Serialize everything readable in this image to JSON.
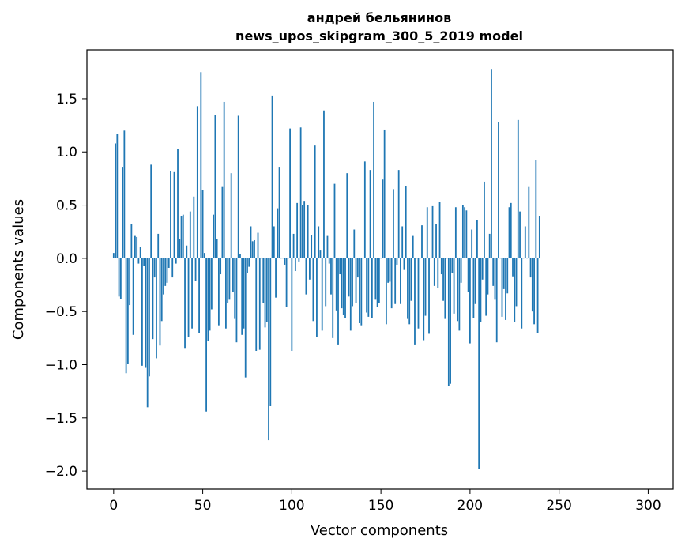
{
  "chart_data": {
    "type": "bar",
    "title": "андрей бельянинов",
    "subtitle": "news_upos_skipgram_300_5_2019 model",
    "xlabel": "Vector components",
    "ylabel": "Components values",
    "xlim": [
      -15,
      314
    ],
    "ylim": [
      -2.17,
      1.96
    ],
    "xticks": [
      0,
      50,
      100,
      150,
      200,
      250,
      300
    ],
    "yticks": [
      -2.0,
      -1.5,
      -1.0,
      -0.5,
      0.0,
      0.5,
      1.0,
      1.5
    ],
    "ytick_labels": [
      "−2.0",
      "−1.5",
      "−1.0",
      "−0.5",
      "0.0",
      "0.5",
      "1.0",
      "1.5"
    ],
    "grid": false,
    "bar_color": "#1f77b4",
    "values": [
      0.05,
      1.08,
      1.17,
      -0.36,
      -0.38,
      0.86,
      1.2,
      -1.08,
      -0.99,
      -0.44,
      0.32,
      -0.72,
      0.21,
      0.2,
      -0.05,
      0.11,
      -1.01,
      -0.07,
      -1.03,
      -1.4,
      -1.11,
      0.88,
      -0.76,
      -0.18,
      -0.94,
      0.23,
      -0.82,
      -0.59,
      -0.34,
      -0.26,
      -0.23,
      -0.09,
      0.82,
      -0.18,
      0.81,
      -0.05,
      1.03,
      0.18,
      0.4,
      0.41,
      -0.85,
      0.12,
      -0.74,
      0.44,
      -0.66,
      0.58,
      -0.21,
      1.43,
      -0.7,
      1.75,
      0.64,
      0.05,
      -1.44,
      -0.78,
      -0.68,
      -0.48,
      0.41,
      1.35,
      0.18,
      -0.63,
      -0.15,
      0.67,
      1.47,
      -0.66,
      -0.42,
      -0.39,
      0.8,
      -0.32,
      -0.57,
      -0.79,
      1.34,
      0.04,
      -0.72,
      -0.66,
      -1.12,
      -0.14,
      -0.08,
      0.3,
      0.16,
      0.17,
      -0.87,
      0.24,
      -0.86,
      0.0,
      -0.42,
      -0.65,
      -0.6,
      -1.71,
      -1.39,
      1.53,
      0.3,
      -0.37,
      0.47,
      0.86,
      0.0,
      0.0,
      -0.06,
      -0.46,
      0.0,
      1.22,
      -0.87,
      0.23,
      -0.12,
      0.52,
      -0.03,
      1.23,
      0.5,
      0.54,
      -0.34,
      0.5,
      -0.2,
      0.22,
      -0.59,
      1.06,
      -0.74,
      0.3,
      0.08,
      -0.68,
      1.39,
      -0.45,
      0.21,
      -0.05,
      -0.34,
      -0.75,
      0.7,
      -0.49,
      -0.81,
      -0.15,
      -0.47,
      -0.53,
      -0.56,
      0.8,
      -0.36,
      -0.68,
      -0.45,
      0.27,
      -0.42,
      -0.18,
      -0.61,
      -0.63,
      0.0,
      0.91,
      -0.51,
      -0.55,
      0.83,
      -0.56,
      1.47,
      -0.39,
      -0.46,
      -0.42,
      0.0,
      0.74,
      1.21,
      -0.62,
      -0.23,
      -0.22,
      -0.47,
      0.65,
      -0.43,
      -0.06,
      0.83,
      -0.43,
      0.3,
      -0.11,
      0.68,
      -0.57,
      -0.62,
      -0.4,
      0.21,
      -0.81,
      0.0,
      -0.66,
      0.0,
      0.31,
      -0.77,
      -0.54,
      0.48,
      -0.71,
      0.0,
      0.49,
      -0.26,
      0.32,
      -0.28,
      0.53,
      -0.15,
      -0.4,
      -0.57,
      0.0,
      -1.2,
      -1.18,
      -0.14,
      -0.52,
      0.48,
      -0.59,
      -0.68,
      -0.23,
      0.5,
      0.48,
      0.45,
      -0.32,
      -0.8,
      0.27,
      -0.56,
      -0.43,
      0.36,
      -1.98,
      -0.6,
      -0.2,
      0.72,
      -0.54,
      -0.34,
      0.23,
      1.78,
      -0.26,
      -0.39,
      -0.79,
      1.28,
      0.0,
      -0.55,
      -0.29,
      -0.58,
      -0.33,
      0.48,
      0.52,
      -0.17,
      -0.6,
      -0.45,
      1.3,
      0.44,
      -0.66,
      0.0,
      0.3,
      0.0,
      0.67,
      -0.18,
      -0.5,
      -0.62,
      0.92,
      -0.7,
      0.4
    ]
  }
}
